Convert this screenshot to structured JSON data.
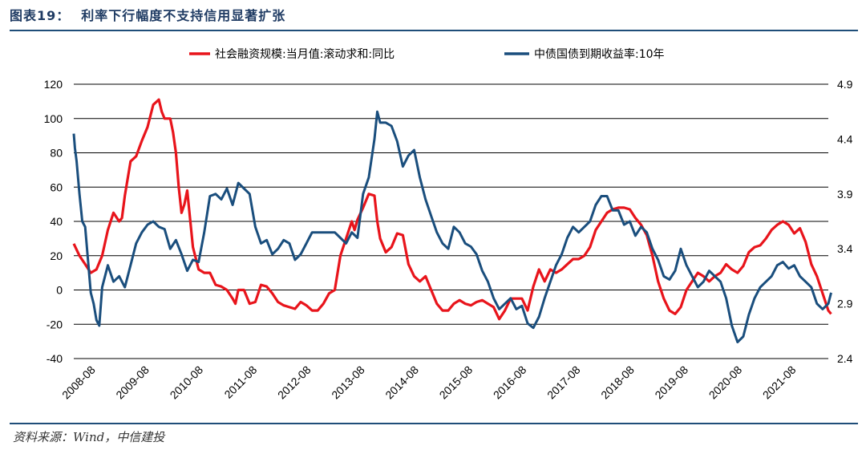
{
  "header": {
    "figure_label": "图表19：",
    "title": "利率下行幅度不支持信用显著扩张"
  },
  "footer": {
    "source": "资料来源：Wind，中信建投"
  },
  "colors": {
    "series1": "#e8141b",
    "series2": "#1a4e7d",
    "rule": "#1f4e79"
  },
  "chart_data": {
    "type": "line",
    "title": "利率下行幅度不支持信用显著扩张",
    "grid": true,
    "legend": "top",
    "x_ticks": [
      "2008-08",
      "2009-08",
      "2010-08",
      "2011-08",
      "2012-08",
      "2013-08",
      "2014-08",
      "2015-08",
      "2016-08",
      "2017-08",
      "2018-08",
      "2019-08",
      "2020-08",
      "2021-08"
    ],
    "x_range": [
      2008.6,
      2021.9
    ],
    "left_axis": {
      "ticks": [
        120,
        100,
        80,
        60,
        40,
        20,
        0,
        -20,
        -40
      ],
      "ylim": [
        -40,
        120
      ]
    },
    "right_axis": {
      "ticks": [
        4.9,
        4.4,
        3.9,
        3.4,
        2.9,
        2.4
      ],
      "ylim": [
        2.4,
        4.9
      ]
    },
    "series": [
      {
        "name": "社会融资规模:当月值:滚动求和:同比",
        "axis": "left",
        "points": [
          [
            2008.6,
            27
          ],
          [
            2008.7,
            20
          ],
          [
            2008.8,
            15
          ],
          [
            2008.9,
            10
          ],
          [
            2009.0,
            12
          ],
          [
            2009.1,
            20
          ],
          [
            2009.2,
            35
          ],
          [
            2009.3,
            45
          ],
          [
            2009.4,
            40
          ],
          [
            2009.45,
            42
          ],
          [
            2009.5,
            55
          ],
          [
            2009.6,
            75
          ],
          [
            2009.7,
            78
          ],
          [
            2009.8,
            87
          ],
          [
            2009.9,
            95
          ],
          [
            2010.0,
            108
          ],
          [
            2010.1,
            111
          ],
          [
            2010.15,
            104
          ],
          [
            2010.2,
            100
          ],
          [
            2010.3,
            100
          ],
          [
            2010.35,
            92
          ],
          [
            2010.4,
            80
          ],
          [
            2010.45,
            60
          ],
          [
            2010.5,
            45
          ],
          [
            2010.55,
            50
          ],
          [
            2010.6,
            58
          ],
          [
            2010.7,
            25
          ],
          [
            2010.8,
            12
          ],
          [
            2010.9,
            10
          ],
          [
            2011.0,
            10
          ],
          [
            2011.1,
            3
          ],
          [
            2011.2,
            2
          ],
          [
            2011.3,
            0
          ],
          [
            2011.4,
            -5
          ],
          [
            2011.45,
            -8
          ],
          [
            2011.5,
            0
          ],
          [
            2011.6,
            0
          ],
          [
            2011.7,
            -8
          ],
          [
            2011.8,
            -7
          ],
          [
            2011.9,
            3
          ],
          [
            2012.0,
            2
          ],
          [
            2012.1,
            -2
          ],
          [
            2012.2,
            -7
          ],
          [
            2012.3,
            -9
          ],
          [
            2012.4,
            -10
          ],
          [
            2012.5,
            -11
          ],
          [
            2012.6,
            -7
          ],
          [
            2012.7,
            -9
          ],
          [
            2012.8,
            -12
          ],
          [
            2012.9,
            -12
          ],
          [
            2013.0,
            -8
          ],
          [
            2013.1,
            -2
          ],
          [
            2013.2,
            0
          ],
          [
            2013.3,
            20
          ],
          [
            2013.4,
            30
          ],
          [
            2013.5,
            40
          ],
          [
            2013.55,
            35
          ],
          [
            2013.6,
            41
          ],
          [
            2013.7,
            48
          ],
          [
            2013.8,
            56
          ],
          [
            2013.9,
            55
          ],
          [
            2013.95,
            40
          ],
          [
            2014.0,
            30
          ],
          [
            2014.1,
            22
          ],
          [
            2014.2,
            25
          ],
          [
            2014.3,
            33
          ],
          [
            2014.4,
            32
          ],
          [
            2014.5,
            15
          ],
          [
            2014.6,
            8
          ],
          [
            2014.7,
            5
          ],
          [
            2014.8,
            8
          ],
          [
            2014.9,
            0
          ],
          [
            2015.0,
            -8
          ],
          [
            2015.1,
            -12
          ],
          [
            2015.2,
            -12
          ],
          [
            2015.3,
            -8
          ],
          [
            2015.4,
            -6
          ],
          [
            2015.5,
            -8
          ],
          [
            2015.6,
            -9
          ],
          [
            2015.7,
            -7
          ],
          [
            2015.8,
            -6
          ],
          [
            2015.9,
            -8
          ],
          [
            2016.0,
            -10
          ],
          [
            2016.1,
            -17
          ],
          [
            2016.2,
            -12
          ],
          [
            2016.3,
            -5
          ],
          [
            2016.4,
            -5
          ],
          [
            2016.5,
            -5
          ],
          [
            2016.6,
            -12
          ],
          [
            2016.7,
            2
          ],
          [
            2016.8,
            12
          ],
          [
            2016.9,
            5
          ],
          [
            2017.0,
            12
          ],
          [
            2017.1,
            10
          ],
          [
            2017.2,
            12
          ],
          [
            2017.3,
            15
          ],
          [
            2017.4,
            18
          ],
          [
            2017.5,
            18
          ],
          [
            2017.6,
            20
          ],
          [
            2017.7,
            25
          ],
          [
            2017.8,
            35
          ],
          [
            2017.9,
            40
          ],
          [
            2018.0,
            45
          ],
          [
            2018.1,
            47
          ],
          [
            2018.2,
            48
          ],
          [
            2018.3,
            48
          ],
          [
            2018.4,
            47
          ],
          [
            2018.5,
            42
          ],
          [
            2018.6,
            38
          ],
          [
            2018.7,
            32
          ],
          [
            2018.8,
            20
          ],
          [
            2018.9,
            5
          ],
          [
            2019.0,
            -5
          ],
          [
            2019.1,
            -12
          ],
          [
            2019.2,
            -14
          ],
          [
            2019.3,
            -10
          ],
          [
            2019.4,
            0
          ],
          [
            2019.5,
            5
          ],
          [
            2019.6,
            10
          ],
          [
            2019.7,
            8
          ],
          [
            2019.8,
            5
          ],
          [
            2019.9,
            8
          ],
          [
            2020.0,
            10
          ],
          [
            2020.1,
            15
          ],
          [
            2020.2,
            12
          ],
          [
            2020.3,
            10
          ],
          [
            2020.4,
            14
          ],
          [
            2020.5,
            22
          ],
          [
            2020.6,
            25
          ],
          [
            2020.7,
            26
          ],
          [
            2020.8,
            30
          ],
          [
            2020.9,
            35
          ],
          [
            2021.0,
            38
          ],
          [
            2021.1,
            40
          ],
          [
            2021.2,
            38
          ],
          [
            2021.3,
            33
          ],
          [
            2021.4,
            36
          ],
          [
            2021.5,
            28
          ],
          [
            2021.6,
            15
          ],
          [
            2021.7,
            8
          ],
          [
            2021.8,
            -2
          ],
          [
            2021.9,
            -12
          ],
          [
            2021.95,
            -14
          ]
        ]
      },
      {
        "name": "中债国债到期收益率:10年",
        "axis": "right",
        "points": [
          [
            2008.6,
            4.45
          ],
          [
            2008.62,
            4.32
          ],
          [
            2008.65,
            4.2
          ],
          [
            2008.7,
            3.9
          ],
          [
            2008.75,
            3.65
          ],
          [
            2008.8,
            3.6
          ],
          [
            2008.85,
            3.3
          ],
          [
            2008.9,
            3.0
          ],
          [
            2008.95,
            2.9
          ],
          [
            2009.0,
            2.75
          ],
          [
            2009.05,
            2.7
          ],
          [
            2009.1,
            3.05
          ],
          [
            2009.2,
            3.25
          ],
          [
            2009.3,
            3.1
          ],
          [
            2009.4,
            3.15
          ],
          [
            2009.5,
            3.05
          ],
          [
            2009.6,
            3.25
          ],
          [
            2009.7,
            3.45
          ],
          [
            2009.8,
            3.55
          ],
          [
            2009.9,
            3.62
          ],
          [
            2010.0,
            3.65
          ],
          [
            2010.1,
            3.6
          ],
          [
            2010.2,
            3.58
          ],
          [
            2010.3,
            3.4
          ],
          [
            2010.4,
            3.48
          ],
          [
            2010.5,
            3.35
          ],
          [
            2010.6,
            3.2
          ],
          [
            2010.7,
            3.3
          ],
          [
            2010.8,
            3.28
          ],
          [
            2010.9,
            3.55
          ],
          [
            2011.0,
            3.88
          ],
          [
            2011.1,
            3.9
          ],
          [
            2011.2,
            3.85
          ],
          [
            2011.3,
            3.95
          ],
          [
            2011.4,
            3.8
          ],
          [
            2011.5,
            4.0
          ],
          [
            2011.6,
            3.95
          ],
          [
            2011.7,
            3.9
          ],
          [
            2011.8,
            3.6
          ],
          [
            2011.9,
            3.45
          ],
          [
            2012.0,
            3.48
          ],
          [
            2012.1,
            3.35
          ],
          [
            2012.2,
            3.4
          ],
          [
            2012.3,
            3.48
          ],
          [
            2012.4,
            3.45
          ],
          [
            2012.5,
            3.3
          ],
          [
            2012.6,
            3.35
          ],
          [
            2012.7,
            3.45
          ],
          [
            2012.8,
            3.55
          ],
          [
            2012.9,
            3.55
          ],
          [
            2013.0,
            3.55
          ],
          [
            2013.1,
            3.55
          ],
          [
            2013.2,
            3.55
          ],
          [
            2013.3,
            3.5
          ],
          [
            2013.4,
            3.45
          ],
          [
            2013.5,
            3.55
          ],
          [
            2013.6,
            3.5
          ],
          [
            2013.7,
            3.9
          ],
          [
            2013.8,
            4.05
          ],
          [
            2013.9,
            4.4
          ],
          [
            2013.95,
            4.65
          ],
          [
            2014.0,
            4.55
          ],
          [
            2014.1,
            4.55
          ],
          [
            2014.2,
            4.52
          ],
          [
            2014.3,
            4.38
          ],
          [
            2014.4,
            4.15
          ],
          [
            2014.5,
            4.25
          ],
          [
            2014.6,
            4.3
          ],
          [
            2014.7,
            4.05
          ],
          [
            2014.8,
            3.85
          ],
          [
            2014.9,
            3.7
          ],
          [
            2015.0,
            3.55
          ],
          [
            2015.1,
            3.45
          ],
          [
            2015.2,
            3.4
          ],
          [
            2015.3,
            3.6
          ],
          [
            2015.4,
            3.55
          ],
          [
            2015.5,
            3.45
          ],
          [
            2015.6,
            3.42
          ],
          [
            2015.7,
            3.35
          ],
          [
            2015.8,
            3.2
          ],
          [
            2015.9,
            3.1
          ],
          [
            2016.0,
            2.95
          ],
          [
            2016.1,
            2.85
          ],
          [
            2016.2,
            2.9
          ],
          [
            2016.3,
            2.95
          ],
          [
            2016.4,
            2.85
          ],
          [
            2016.5,
            2.88
          ],
          [
            2016.6,
            2.72
          ],
          [
            2016.7,
            2.68
          ],
          [
            2016.8,
            2.78
          ],
          [
            2016.9,
            2.95
          ],
          [
            2017.0,
            3.1
          ],
          [
            2017.1,
            3.25
          ],
          [
            2017.2,
            3.35
          ],
          [
            2017.3,
            3.5
          ],
          [
            2017.4,
            3.6
          ],
          [
            2017.5,
            3.55
          ],
          [
            2017.6,
            3.6
          ],
          [
            2017.7,
            3.65
          ],
          [
            2017.8,
            3.8
          ],
          [
            2017.9,
            3.88
          ],
          [
            2018.0,
            3.88
          ],
          [
            2018.1,
            3.75
          ],
          [
            2018.2,
            3.75
          ],
          [
            2018.3,
            3.62
          ],
          [
            2018.4,
            3.65
          ],
          [
            2018.5,
            3.52
          ],
          [
            2018.6,
            3.6
          ],
          [
            2018.7,
            3.55
          ],
          [
            2018.8,
            3.4
          ],
          [
            2018.9,
            3.3
          ],
          [
            2019.0,
            3.15
          ],
          [
            2019.1,
            3.12
          ],
          [
            2019.2,
            3.2
          ],
          [
            2019.3,
            3.4
          ],
          [
            2019.4,
            3.25
          ],
          [
            2019.5,
            3.15
          ],
          [
            2019.6,
            3.05
          ],
          [
            2019.7,
            3.1
          ],
          [
            2019.8,
            3.2
          ],
          [
            2019.9,
            3.15
          ],
          [
            2020.0,
            3.1
          ],
          [
            2020.1,
            2.95
          ],
          [
            2020.2,
            2.7
          ],
          [
            2020.3,
            2.55
          ],
          [
            2020.4,
            2.6
          ],
          [
            2020.5,
            2.8
          ],
          [
            2020.6,
            2.95
          ],
          [
            2020.7,
            3.05
          ],
          [
            2020.8,
            3.1
          ],
          [
            2020.9,
            3.15
          ],
          [
            2021.0,
            3.25
          ],
          [
            2021.1,
            3.28
          ],
          [
            2021.2,
            3.22
          ],
          [
            2021.3,
            3.25
          ],
          [
            2021.4,
            3.15
          ],
          [
            2021.5,
            3.1
          ],
          [
            2021.6,
            3.05
          ],
          [
            2021.7,
            2.9
          ],
          [
            2021.8,
            2.85
          ],
          [
            2021.9,
            2.9
          ],
          [
            2021.95,
            3.0
          ]
        ]
      }
    ]
  }
}
